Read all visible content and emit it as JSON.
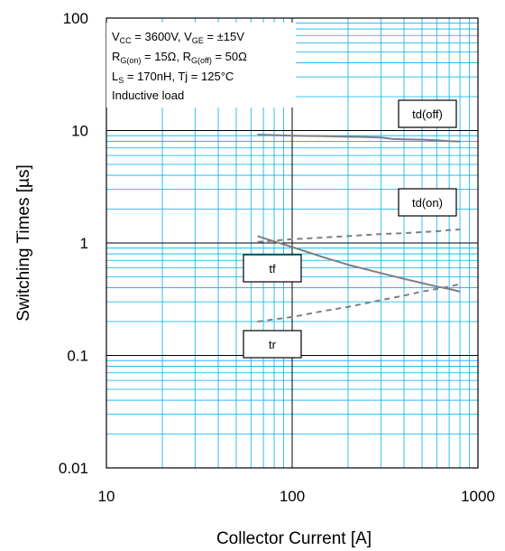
{
  "chart_data": {
    "type": "line",
    "x_scale": "log",
    "y_scale": "log",
    "xlim": [
      10,
      1000
    ],
    "ylim": [
      0.01,
      100
    ],
    "xlabel": "Collector Current [A]",
    "ylabel": "Switching Times [µs]",
    "x_ticks": [
      "10",
      "100",
      "1000"
    ],
    "y_ticks": [
      "0.01",
      "0.1",
      "1",
      "10",
      "100"
    ],
    "grid": "on (major and minor)",
    "conditions": {
      "line1_main1": "V",
      "line1_sub1": "CC",
      "line1_mid": " = 3600V, V",
      "line1_sub2": "GE",
      "line1_end": " = ±15V",
      "line2_main1": "R",
      "line2_sub1": "G(on)",
      "line2_mid": " = 15Ω, R",
      "line2_sub2": "G(off)",
      "line2_end": " = 50Ω",
      "line3_main1": "L",
      "line3_sub1": "S",
      "line3_end": " = 170nH, Tj = 125°C",
      "line4": "Inductive load"
    },
    "series": [
      {
        "name": "td(off)",
        "style": "solid",
        "color": "#7f7f7f",
        "x": [
          65,
          100,
          150,
          200,
          250,
          300,
          350,
          400,
          500,
          600,
          700,
          800
        ],
        "y": [
          9.2,
          9.0,
          8.9,
          8.8,
          8.75,
          8.65,
          8.4,
          8.35,
          8.3,
          8.2,
          8.05,
          8.0
        ]
      },
      {
        "name": "td(on)",
        "style": "dashed",
        "color": "#7f7f7f",
        "x": [
          65,
          100,
          150,
          200,
          300,
          400,
          500,
          600,
          700,
          800
        ],
        "y": [
          1.02,
          1.08,
          1.12,
          1.15,
          1.2,
          1.22,
          1.25,
          1.27,
          1.3,
          1.32
        ]
      },
      {
        "name": "tf",
        "style": "solid",
        "color": "#7f7f7f",
        "x": [
          65,
          100,
          150,
          200,
          300,
          400,
          500,
          600,
          700,
          800
        ],
        "y": [
          1.15,
          0.92,
          0.74,
          0.64,
          0.54,
          0.48,
          0.44,
          0.41,
          0.39,
          0.37
        ]
      },
      {
        "name": "tr",
        "style": "dashed",
        "color": "#7f7f7f",
        "x": [
          65,
          100,
          150,
          200,
          300,
          400,
          500,
          600,
          700,
          800
        ],
        "y": [
          0.2,
          0.22,
          0.25,
          0.27,
          0.31,
          0.34,
          0.37,
          0.39,
          0.41,
          0.43
        ]
      }
    ],
    "curve_labels": [
      "td(off)",
      "td(on)",
      "tf",
      "tr"
    ]
  },
  "colors": {
    "grid": "#00b0f0",
    "major_grid": "#000000",
    "curve": "#7f7f7f",
    "background": "#ffffff"
  }
}
